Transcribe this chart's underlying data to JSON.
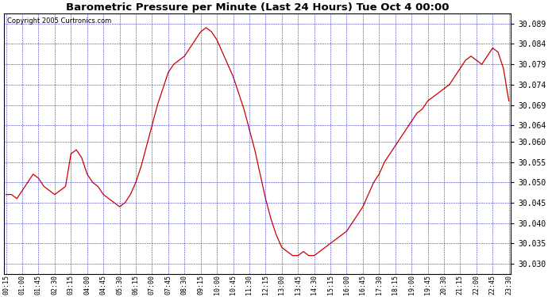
{
  "title": "Barometric Pressure per Minute (Last 24 Hours) Tue Oct 4 00:00",
  "copyright": "Copyright 2005 Curtronics.com",
  "ylim": [
    30.0275,
    30.0915
  ],
  "yticks": [
    30.03,
    30.035,
    30.04,
    30.045,
    30.05,
    30.055,
    30.06,
    30.064,
    30.069,
    30.074,
    30.079,
    30.084,
    30.089
  ],
  "bg_color": "#ffffff",
  "plot_bg_color": "#ffffff",
  "grid_color": "#0000cc",
  "line_color": "#cc0000",
  "border_color": "#000000",
  "xtick_labels": [
    "00:15",
    "01:00",
    "01:45",
    "02:30",
    "03:15",
    "04:00",
    "04:45",
    "05:30",
    "06:15",
    "07:00",
    "07:45",
    "08:30",
    "09:15",
    "10:00",
    "10:45",
    "11:30",
    "12:15",
    "13:00",
    "13:45",
    "14:30",
    "15:15",
    "16:00",
    "16:45",
    "17:30",
    "18:15",
    "19:00",
    "19:45",
    "20:30",
    "21:15",
    "22:00",
    "22:45",
    "23:30"
  ],
  "pressure_data": {
    "00:15": 30.047,
    "00:30": 30.047,
    "00:45": 30.046,
    "01:00": 30.048,
    "01:15": 30.05,
    "01:30": 30.052,
    "01:45": 30.051,
    "02:00": 30.049,
    "02:15": 30.048,
    "02:30": 30.047,
    "02:45": 30.048,
    "03:00": 30.049,
    "03:15": 30.057,
    "03:30": 30.058,
    "03:45": 30.056,
    "04:00": 30.052,
    "04:15": 30.05,
    "04:30": 30.049,
    "04:45": 30.047,
    "05:00": 30.046,
    "05:15": 30.045,
    "05:30": 30.044,
    "05:45": 30.045,
    "06:00": 30.047,
    "06:15": 30.05,
    "06:30": 30.054,
    "06:45": 30.059,
    "07:00": 30.064,
    "07:15": 30.069,
    "07:30": 30.073,
    "07:45": 30.077,
    "08:00": 30.079,
    "08:15": 30.08,
    "08:30": 30.081,
    "08:45": 30.083,
    "09:00": 30.085,
    "09:15": 30.087,
    "09:30": 30.088,
    "09:45": 30.087,
    "10:00": 30.085,
    "10:15": 30.082,
    "10:30": 30.079,
    "10:45": 30.076,
    "11:00": 30.072,
    "11:15": 30.068,
    "11:30": 30.063,
    "11:45": 30.058,
    "12:00": 30.052,
    "12:15": 30.046,
    "12:30": 30.041,
    "12:45": 30.037,
    "13:00": 30.034,
    "13:15": 30.033,
    "13:30": 30.032,
    "13:45": 30.032,
    "14:00": 30.033,
    "14:15": 30.032,
    "14:30": 30.032,
    "14:45": 30.033,
    "15:00": 30.034,
    "15:15": 30.035,
    "15:30": 30.036,
    "15:45": 30.037,
    "16:00": 30.038,
    "16:15": 30.04,
    "16:30": 30.042,
    "16:45": 30.044,
    "17:00": 30.047,
    "17:15": 30.05,
    "17:30": 30.052,
    "17:45": 30.055,
    "18:00": 30.057,
    "18:15": 30.059,
    "18:30": 30.061,
    "18:45": 30.063,
    "19:00": 30.065,
    "19:15": 30.067,
    "19:30": 30.068,
    "19:45": 30.07,
    "20:00": 30.071,
    "20:15": 30.072,
    "20:30": 30.073,
    "20:45": 30.074,
    "21:00": 30.076,
    "21:15": 30.078,
    "21:30": 30.08,
    "21:45": 30.081,
    "22:00": 30.08,
    "22:15": 30.079,
    "22:30": 30.081,
    "22:45": 30.083,
    "23:00": 30.082,
    "23:15": 30.078,
    "23:30": 30.07
  },
  "figsize": [
    6.9,
    3.75
  ],
  "dpi": 100
}
